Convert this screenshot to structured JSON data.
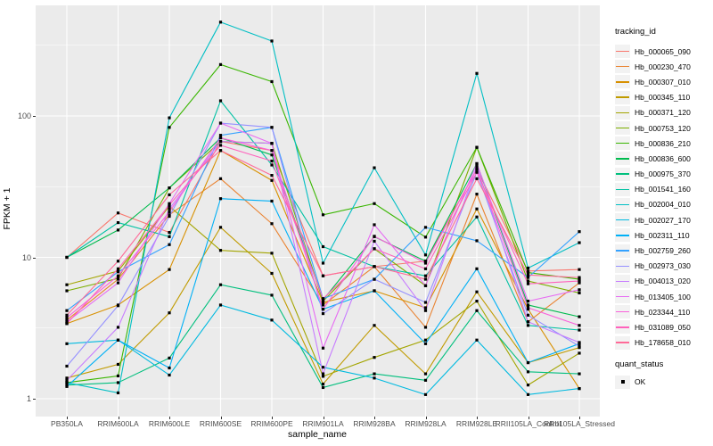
{
  "figure": {
    "background": "#FFFFFF",
    "panel_background": "#EBEBEB",
    "grid_color": "#FFFFFF",
    "axis_text_color": "#4D4D4D",
    "tick_mark_color": "#333333",
    "marker_color": "#000000"
  },
  "axes": {
    "x_title": "sample_name",
    "y_title": "FPKM + 1"
  },
  "legend": {
    "tracking_title": "tracking_id",
    "quant_title": "quant_status",
    "ok_label": "OK"
  },
  "chart_data": {
    "type": "line",
    "title": "",
    "xlabel": "sample_name",
    "ylabel": "FPKM + 1",
    "y_scale": "log10",
    "ylim": [
      1,
      600
    ],
    "y_ticks": [
      1,
      10,
      100
    ],
    "y_minor_ticks": [
      3.162,
      31.62,
      316.2
    ],
    "grid": true,
    "legend_position": "right",
    "marker": "square",
    "marker_meaning": "quant_status OK",
    "categories": [
      "PB350LA",
      "RRIM600LA",
      "RRIM600LE",
      "RRIM600SE",
      "RRIM600PE",
      "RRIM901LA",
      "RRIM928BA",
      "RRIM928LA",
      "RRIM928LE",
      "RRII105LA_Control",
      "RRII105LA_Stressed"
    ],
    "series": [
      {
        "name": "Hb_000065_090",
        "color": "#F8766D",
        "values": [
          10,
          20.6,
          15,
          66,
          57,
          7.4,
          8.6,
          9.4,
          42,
          8.0,
          8.2
        ]
      },
      {
        "name": "Hb_000230_470",
        "color": "#EA8331",
        "values": [
          3.6,
          7.0,
          20,
          36,
          17.3,
          4.6,
          8.6,
          3.2,
          28,
          3.5,
          6.6
        ]
      },
      {
        "name": "Hb_000307_010",
        "color": "#D89000",
        "values": [
          3.4,
          4.6,
          8.2,
          57,
          35,
          4.8,
          5.8,
          4.4,
          22,
          4.3,
          1.18
        ]
      },
      {
        "name": "Hb_000345_110",
        "color": "#C09B00",
        "values": [
          1.4,
          1.75,
          4.05,
          16.3,
          7.7,
          1.27,
          3.3,
          1.5,
          5.7,
          1.8,
          2.3
        ]
      },
      {
        "name": "Hb_000371_120",
        "color": "#A3A500",
        "values": [
          6.4,
          8.0,
          23,
          11.2,
          10.7,
          1.44,
          1.96,
          2.6,
          4.9,
          1.25,
          2.1
        ]
      },
      {
        "name": "Hb_000753_120",
        "color": "#7CAE00",
        "values": [
          5.8,
          7.1,
          31,
          66,
          64,
          4.9,
          11.5,
          6.3,
          60,
          6.8,
          5.6
        ]
      },
      {
        "name": "Hb_000836_210",
        "color": "#39B600",
        "values": [
          1.3,
          1.45,
          83,
          231,
          175,
          20,
          24,
          13.9,
          60,
          7.8,
          7.0
        ]
      },
      {
        "name": "Hb_000836_600",
        "color": "#00BB4E",
        "values": [
          10,
          15.6,
          31,
          70,
          53,
          5.0,
          14,
          9.4,
          46,
          4.6,
          3.8
        ]
      },
      {
        "name": "Hb_000975_370",
        "color": "#00BF7D",
        "values": [
          1.25,
          1.3,
          1.94,
          6.4,
          5.4,
          1.2,
          1.5,
          1.35,
          4.2,
          1.55,
          1.5
        ]
      },
      {
        "name": "Hb_001541_160",
        "color": "#00C1A3",
        "values": [
          10,
          17.6,
          14,
          128,
          45,
          11.9,
          8.6,
          7.4,
          19.3,
          3.3,
          3.06
        ]
      },
      {
        "name": "Hb_002004_010",
        "color": "#00BFC4",
        "values": [
          1.3,
          1.1,
          97,
          461,
          339,
          9.1,
          43,
          10.4,
          200,
          8.4,
          12.7
        ]
      },
      {
        "name": "Hb_002027_170",
        "color": "#00BAE0",
        "values": [
          2.45,
          2.6,
          1.47,
          4.6,
          3.6,
          1.67,
          1.4,
          1.07,
          2.6,
          1.07,
          1.18
        ]
      },
      {
        "name": "Hb_002311_110",
        "color": "#00B0F6",
        "values": [
          1.22,
          2.6,
          1.65,
          26,
          25,
          4.3,
          5.8,
          2.45,
          8.3,
          1.8,
          2.45
        ]
      },
      {
        "name": "Hb_002759_260",
        "color": "#35A2FF",
        "values": [
          4.2,
          7.9,
          12.3,
          73,
          83,
          5.1,
          7.0,
          16.3,
          13.1,
          7.2,
          15.2
        ]
      },
      {
        "name": "Hb_002973_030",
        "color": "#9590FF",
        "values": [
          1.7,
          4.55,
          19.5,
          89,
          83,
          4.0,
          7.0,
          4.8,
          40,
          3.9,
          2.35
        ]
      },
      {
        "name": "Hb_004013_020",
        "color": "#C77CFF",
        "values": [
          1.35,
          3.2,
          22,
          66,
          64,
          1.5,
          13,
          4.2,
          44,
          3.5,
          2.5
        ]
      },
      {
        "name": "Hb_013405_100",
        "color": "#E76BF3",
        "values": [
          3.5,
          6.6,
          24,
          89,
          64,
          2.28,
          17,
          6.3,
          46,
          4.9,
          5.9
        ]
      },
      {
        "name": "Hb_023344_110",
        "color": "#FA62DB",
        "values": [
          3.75,
          7.4,
          21,
          70,
          57,
          4.3,
          14.1,
          9.1,
          42,
          4.4,
          3.3
        ]
      },
      {
        "name": "Hb_031089_050",
        "color": "#FF62BC",
        "values": [
          3.4,
          8.3,
          23.5,
          62,
          48,
          5.1,
          11.5,
          8.3,
          40,
          6.5,
          6.8
        ]
      },
      {
        "name": "Hb_178658_010",
        "color": "#FF6A98",
        "values": [
          3.9,
          9.4,
          27.7,
          57,
          38,
          7.4,
          8.6,
          7.0,
          36,
          7.5,
          7.2
        ]
      }
    ]
  }
}
